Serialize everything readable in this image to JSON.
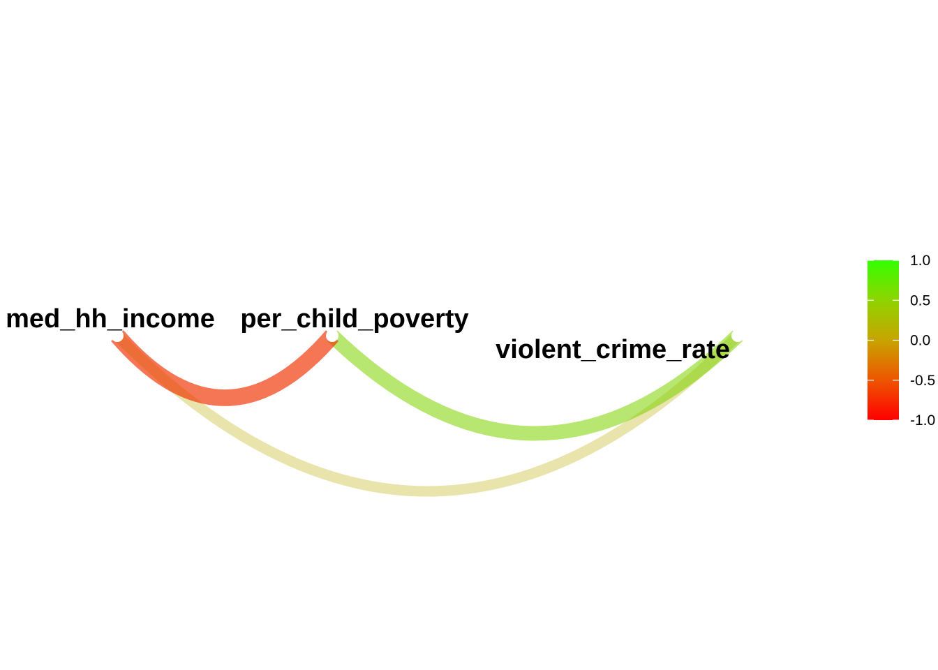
{
  "chart_data": {
    "type": "network",
    "nodes": [
      "med_hh_income",
      "per_child_poverty",
      "violent_crime_rate"
    ],
    "edges": [
      {
        "from": "med_hh_income",
        "to": "violent_crime_rate",
        "correlation": 0.08
      },
      {
        "from": "per_child_poverty",
        "to": "violent_crime_rate",
        "correlation": 0.5
      },
      {
        "from": "med_hh_income",
        "to": "per_child_poverty",
        "correlation": -0.7
      }
    ],
    "legend": {
      "placement": "right",
      "range": [
        -1.0,
        1.0
      ],
      "ticks": [
        "1.0",
        "0.5",
        "0.0",
        "-0.5",
        "-1.0"
      ],
      "colors": {
        "low": "#ff0000",
        "mid": "#c8a400",
        "high": "#33ff00"
      }
    },
    "grid": false
  }
}
